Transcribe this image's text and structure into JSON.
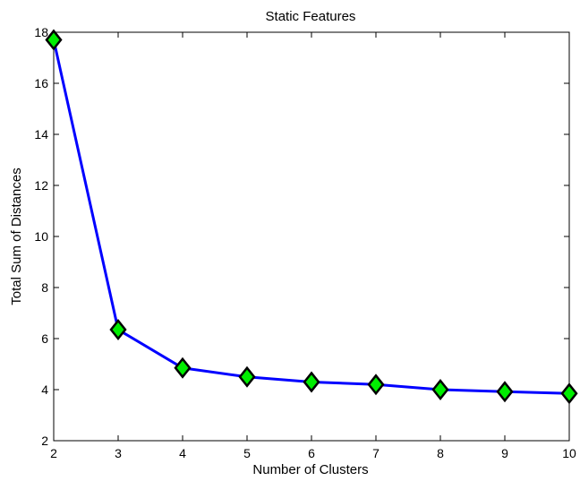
{
  "chart_data": {
    "type": "line",
    "title": "Static Features",
    "xlabel": "Number of Clusters",
    "ylabel": "Total Sum of Distances",
    "xlim": [
      2,
      10
    ],
    "ylim": [
      2,
      18
    ],
    "xticks": [
      2,
      3,
      4,
      5,
      6,
      7,
      8,
      9,
      10
    ],
    "yticks": [
      2,
      4,
      6,
      8,
      10,
      12,
      14,
      16,
      18
    ],
    "grid": false,
    "series": [
      {
        "x": [
          2,
          3,
          4,
          5,
          6,
          7,
          8,
          9,
          10
        ],
        "y": [
          17.7,
          6.35,
          4.85,
          4.5,
          4.3,
          4.2,
          4.0,
          3.92,
          3.85
        ],
        "line_color": "#0000ff",
        "marker": "diamond",
        "marker_face_color": "#00ee00",
        "marker_edge_color": "#000000"
      }
    ]
  }
}
